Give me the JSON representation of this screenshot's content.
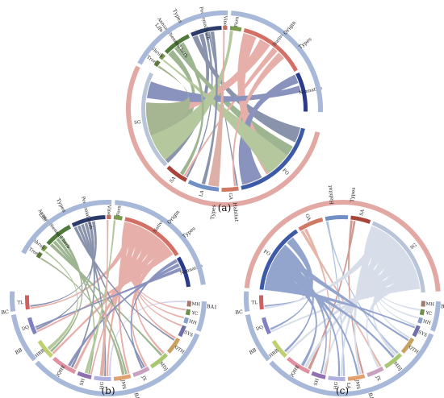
{
  "figure": {
    "panels": [
      {
        "id": "a",
        "caption": "(a)",
        "groups": [
          {
            "label": "Life",
            "label2": "Types",
            "color": "#a8b8d8"
          },
          {
            "label": "Origin",
            "label2": "Types",
            "color": "#a8b8d8"
          },
          {
            "label": "Habitat",
            "label2": "Types",
            "color": "#e2a8a4"
          }
        ],
        "nodes": [
          {
            "label": "Fern",
            "color": "#7a9a4e"
          },
          {
            "label": "Native",
            "color": "#d46f66"
          },
          {
            "label": "Nonnative",
            "color": "#2b3b8a"
          },
          {
            "label": "FO",
            "color": "#3c5aa6"
          },
          {
            "label": "GA",
            "color": "#d07a66"
          },
          {
            "label": "LA",
            "color": "#6f8fc6"
          },
          {
            "label": "SA",
            "color": "#a8443a"
          },
          {
            "label": "SG",
            "color": "#b8c4d8"
          },
          {
            "label": "Tree",
            "color": "#5e7a3a"
          },
          {
            "label": "Shrub",
            "color": "#7a9a4e"
          },
          {
            "label": "Annual/Biennial herb",
            "color": "#4f7a3a"
          },
          {
            "label": "Perennial herb",
            "color": "#2b3b6a"
          },
          {
            "label": "Vine",
            "color": "#c07060"
          }
        ]
      },
      {
        "id": "b",
        "caption": "(b)",
        "groups": [
          {
            "label": "Life",
            "label2": "Types",
            "color": "#a8b8d8"
          },
          {
            "label": "Origin",
            "label2": "Types",
            "color": "#a8b8d8"
          },
          {
            "label": "BA1",
            "color": "#a8b8d8"
          },
          {
            "label": "BA2",
            "color": "#a8b8d8"
          },
          {
            "label": "BB",
            "color": "#a8b8d8"
          },
          {
            "label": "BC",
            "color": "#a8b8d8"
          }
        ],
        "nodes": [
          {
            "label": "Fern",
            "color": "#7a9a4e"
          },
          {
            "label": "Native",
            "color": "#d46f66"
          },
          {
            "label": "Nonnative",
            "color": "#2b3b8a"
          },
          {
            "label": "MH",
            "color": "#a07a70"
          },
          {
            "label": "YC",
            "color": "#6f8f4e"
          },
          {
            "label": "HH",
            "color": "#8aa0c8"
          },
          {
            "label": "SYS",
            "color": "#7070a8"
          },
          {
            "label": "QTH",
            "color": "#c8a060"
          },
          {
            "label": "MDJ",
            "color": "#a8c870"
          },
          {
            "label": "JX",
            "color": "#c8a0c0"
          },
          {
            "label": "JMS",
            "color": "#e0a070"
          },
          {
            "label": "HG",
            "color": "#b0b0e0"
          },
          {
            "label": "SH",
            "color": "#9070b0"
          },
          {
            "label": "QQHE",
            "color": "#e090a0"
          },
          {
            "label": "HRB",
            "color": "#c0d070"
          },
          {
            "label": "DQ",
            "color": "#8080c0"
          },
          {
            "label": "TL",
            "color": "#d06060"
          },
          {
            "label": "Tree",
            "color": "#5e7a3a"
          },
          {
            "label": "Shrub",
            "color": "#7a9a4e"
          },
          {
            "label": "Annual/Biennial herb",
            "color": "#4f7a3a"
          },
          {
            "label": "Perennial herb",
            "color": "#2b3b6a"
          },
          {
            "label": "Vine",
            "color": "#c07060"
          }
        ]
      },
      {
        "id": "c",
        "caption": "(c)",
        "groups": [
          {
            "label": "Habitat",
            "label2": "Types",
            "color": "#e2a8a4"
          },
          {
            "label": "BA1",
            "color": "#a8b8d8"
          },
          {
            "label": "BA2",
            "color": "#a8b8d8"
          },
          {
            "label": "BB",
            "color": "#a8b8d8"
          },
          {
            "label": "BC",
            "color": "#a8b8d8"
          }
        ],
        "nodes": [
          {
            "label": "GA",
            "color": "#d07a66"
          },
          {
            "label": "LA",
            "color": "#6f8fc6"
          },
          {
            "label": "SA",
            "color": "#a8443a"
          },
          {
            "label": "SG",
            "color": "#b8c4d8"
          },
          {
            "label": "MH",
            "color": "#a07a70"
          },
          {
            "label": "YC",
            "color": "#6f8f4e"
          },
          {
            "label": "HH",
            "color": "#8aa0c8"
          },
          {
            "label": "SYS",
            "color": "#7070a8"
          },
          {
            "label": "QTH",
            "color": "#c8a060"
          },
          {
            "label": "MDJ",
            "color": "#a8c870"
          },
          {
            "label": "JX",
            "color": "#c8a0c0"
          },
          {
            "label": "JMS",
            "color": "#e0a070"
          },
          {
            "label": "HG",
            "color": "#b0b0e0"
          },
          {
            "label": "SH",
            "color": "#9070b0"
          },
          {
            "label": "QQHE",
            "color": "#e090a0"
          },
          {
            "label": "HRB",
            "color": "#c0d070"
          },
          {
            "label": "DQ",
            "color": "#8080c0"
          },
          {
            "label": "TL",
            "color": "#d06060"
          },
          {
            "label": "FO",
            "color": "#3c5aa6"
          }
        ]
      }
    ]
  }
}
